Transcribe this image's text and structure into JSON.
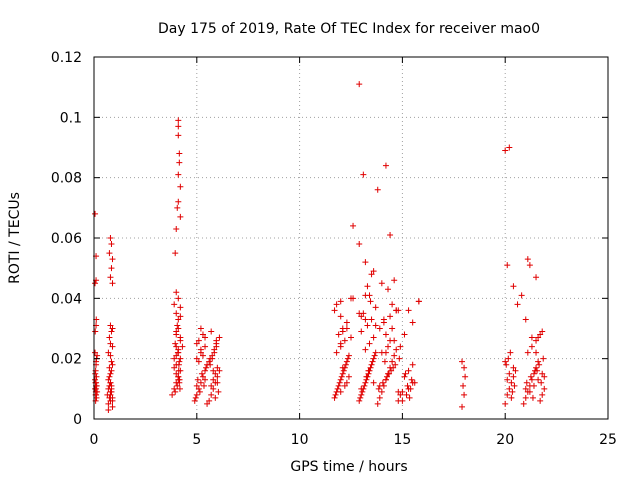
{
  "chart_data": {
    "type": "scatter",
    "title": "Day 175 of 2019, Rate Of TEC Index for receiver mao0",
    "xlabel": "GPS time / hours",
    "ylabel": "ROTI / TECUs",
    "xlim": [
      0,
      25
    ],
    "ylim": [
      0,
      0.12
    ],
    "xticks": [
      0,
      5,
      10,
      15,
      20,
      25
    ],
    "xtick_labels": [
      "0",
      "5",
      "10",
      "15",
      "20",
      "25"
    ],
    "yticks": [
      0,
      0.02,
      0.04,
      0.06,
      0.08,
      0.1,
      0.12
    ],
    "ytick_labels": [
      "0",
      "0.02",
      "0.04",
      "0.06",
      "0.08",
      "0.1",
      "0.12"
    ],
    "grid": true,
    "legend": "none",
    "marker": "+",
    "series": [
      {
        "name": "mao0",
        "color": "#e00000",
        "x": [
          0.05,
          0.08,
          0.1,
          0.12,
          0.05,
          0.15,
          0.1,
          0.08,
          0.12,
          0.06,
          0.1,
          0.15,
          0.1,
          0.05,
          0.08,
          0.12,
          0.1,
          0.06,
          0.11,
          0.09,
          0.13,
          0.07,
          0.1,
          0.1,
          0.7,
          0.75,
          0.8,
          0.85,
          0.9,
          0.65,
          0.7,
          0.8,
          0.9,
          0.75,
          0.85,
          0.7,
          0.8,
          0.9,
          0.75,
          0.85,
          0.8,
          0.7,
          0.9,
          0.8,
          0.75,
          0.85,
          0.8,
          0.9,
          0.7,
          0.8,
          0.85,
          0.75,
          0.8,
          0.9,
          0.8,
          0.85,
          3.8,
          3.9,
          4.0,
          4.1,
          4.2,
          4.0,
          3.9,
          4.1,
          4.0,
          4.2,
          3.95,
          4.05,
          4.1,
          4.0,
          3.9,
          4.15,
          4.0,
          4.1,
          3.95,
          4.2,
          4.0,
          4.05,
          4.1,
          4.0,
          4.2,
          4.1,
          3.9,
          4.0,
          4.1,
          4.0,
          4.2,
          4.15,
          4.12,
          4.18,
          4.1,
          4.13,
          4.2,
          4.08,
          4.16,
          4.3,
          4.9,
          5.0,
          5.1,
          5.2,
          5.3,
          5.4,
          5.5,
          5.0,
          5.2,
          5.4,
          4.95,
          5.15,
          5.35,
          5.05,
          5.25,
          5.45,
          5.1,
          5.3,
          5.2,
          5.0,
          5.4,
          5.5,
          5.1,
          5.3,
          5.2,
          5.0,
          5.4,
          5.6,
          5.7,
          5.8,
          5.9,
          6.0,
          6.1,
          5.65,
          5.75,
          5.85,
          5.95,
          6.05,
          5.7,
          5.8,
          5.9,
          6.0,
          5.6,
          5.75,
          5.85,
          5.95,
          6.1,
          5.7,
          5.9,
          6.0,
          5.8,
          5.65,
          5.95,
          11.7,
          11.8,
          11.9,
          12.0,
          12.1,
          12.2,
          12.3,
          12.4,
          11.75,
          11.85,
          11.95,
          12.05,
          12.15,
          12.25,
          12.35,
          11.8,
          12.0,
          12.2,
          11.9,
          12.1,
          12.3,
          12.0,
          11.7,
          11.8,
          12.4,
          12.2,
          12.0,
          12.1,
          12.3,
          12.9,
          13.0,
          13.1,
          13.2,
          13.3,
          13.4,
          13.5,
          13.6,
          13.7,
          12.95,
          13.05,
          13.15,
          13.25,
          13.35,
          13.45,
          13.55,
          13.65,
          13.2,
          13.4,
          13.6,
          13.0,
          13.3,
          13.5,
          13.1,
          13.7,
          13.45,
          13.2,
          13.6,
          13.35,
          13.0,
          13.25,
          13.8,
          13.9,
          14.0,
          14.1,
          14.2,
          14.3,
          14.4,
          14.5,
          14.6,
          14.7,
          14.8,
          14.9,
          13.85,
          14.05,
          14.25,
          14.45,
          14.65,
          14.85,
          14.0,
          14.3,
          14.6,
          14.2,
          14.5,
          14.1,
          14.4,
          14.7,
          13.9,
          14.2,
          14.8,
          14.35,
          14.55,
          14.15,
          15.0,
          15.2,
          15.4,
          15.6,
          15.1,
          15.3,
          15.5,
          15.0,
          15.25,
          15.45,
          15.35,
          15.15,
          15.5,
          15.3,
          12.0,
          12.5,
          13.3,
          13.2,
          12.6,
          12.9,
          13.5,
          14.0,
          14.5,
          14.8,
          15.1,
          15.5,
          15.8,
          12.3,
          13.4,
          13.7,
          14.2,
          14.9,
          12.1,
          13.0,
          13.9,
          14.4,
          17.9,
          18.0,
          17.95,
          18.05,
          18.0,
          17.9,
          20.0,
          20.1,
          20.2,
          20.3,
          20.4,
          20.5,
          20.05,
          20.15,
          20.25,
          20.35,
          20.45,
          20.1,
          20.3,
          20.2,
          20.4,
          20.0,
          20.9,
          21.0,
          21.1,
          21.2,
          21.3,
          21.4,
          21.5,
          21.6,
          21.7,
          21.8,
          21.9,
          21.05,
          21.25,
          21.45,
          21.65,
          21.85,
          21.1,
          21.3,
          21.5,
          21.7,
          21.2,
          21.4,
          21.6,
          21.8,
          21.35,
          21.55,
          21.75,
          21.0,
          21.9,
          21.3,
          21.5,
          0.05,
          0.1,
          0.1,
          0.05,
          0.8,
          0.85,
          0.75,
          0.9,
          0.85,
          0.8,
          0.9,
          4.1,
          4.1,
          4.1,
          4.15,
          4.15,
          4.1,
          4.2,
          4.1,
          4.05,
          4.2,
          4.0,
          3.95,
          12.0,
          12.6,
          12.5,
          12.9,
          13.1,
          12.9,
          13.2,
          13.6,
          13.8,
          14.2,
          14.4,
          14.6,
          14.3,
          14.7,
          14.1,
          15.8,
          15.3,
          20.0,
          20.1,
          20.2,
          20.4,
          20.6,
          20.8,
          21.0,
          21.1,
          21.2,
          21.5,
          21.8,
          21.6
        ],
        "y": [
          0.01,
          0.008,
          0.012,
          0.007,
          0.013,
          0.009,
          0.011,
          0.006,
          0.014,
          0.015,
          0.019,
          0.021,
          0.018,
          0.022,
          0.016,
          0.02,
          0.031,
          0.029,
          0.033,
          0.009,
          0.011,
          0.012,
          0.01,
          0.008,
          0.005,
          0.007,
          0.009,
          0.011,
          0.006,
          0.008,
          0.01,
          0.012,
          0.004,
          0.014,
          0.016,
          0.013,
          0.015,
          0.018,
          0.017,
          0.019,
          0.021,
          0.022,
          0.024,
          0.025,
          0.027,
          0.029,
          0.031,
          0.03,
          0.003,
          0.006,
          0.009,
          0.011,
          0.008,
          0.007,
          0.012,
          0.01,
          0.008,
          0.01,
          0.012,
          0.014,
          0.016,
          0.018,
          0.02,
          0.022,
          0.024,
          0.026,
          0.009,
          0.011,
          0.013,
          0.015,
          0.017,
          0.019,
          0.021,
          0.023,
          0.025,
          0.027,
          0.029,
          0.031,
          0.033,
          0.035,
          0.037,
          0.04,
          0.038,
          0.042,
          0.03,
          0.028,
          0.034,
          0.012,
          0.016,
          0.01,
          0.014,
          0.018,
          0.02,
          0.022,
          0.013,
          0.024,
          0.006,
          0.008,
          0.01,
          0.012,
          0.014,
          0.016,
          0.018,
          0.02,
          0.022,
          0.024,
          0.007,
          0.009,
          0.011,
          0.013,
          0.015,
          0.017,
          0.019,
          0.021,
          0.023,
          0.025,
          0.027,
          0.005,
          0.026,
          0.028,
          0.03,
          0.011,
          0.013,
          0.006,
          0.008,
          0.01,
          0.012,
          0.014,
          0.016,
          0.018,
          0.02,
          0.022,
          0.024,
          0.009,
          0.011,
          0.013,
          0.015,
          0.017,
          0.019,
          0.021,
          0.023,
          0.025,
          0.027,
          0.029,
          0.007,
          0.012,
          0.016,
          0.02,
          0.026,
          0.007,
          0.009,
          0.011,
          0.013,
          0.015,
          0.017,
          0.019,
          0.021,
          0.008,
          0.01,
          0.012,
          0.014,
          0.016,
          0.018,
          0.02,
          0.022,
          0.024,
          0.026,
          0.028,
          0.03,
          0.032,
          0.034,
          0.036,
          0.038,
          0.014,
          0.011,
          0.009,
          0.017,
          0.012,
          0.006,
          0.008,
          0.01,
          0.012,
          0.014,
          0.016,
          0.018,
          0.02,
          0.022,
          0.007,
          0.009,
          0.011,
          0.013,
          0.015,
          0.017,
          0.019,
          0.021,
          0.023,
          0.025,
          0.027,
          0.029,
          0.031,
          0.033,
          0.035,
          0.037,
          0.039,
          0.041,
          0.012,
          0.016,
          0.01,
          0.014,
          0.005,
          0.007,
          0.009,
          0.011,
          0.013,
          0.015,
          0.017,
          0.019,
          0.021,
          0.023,
          0.006,
          0.008,
          0.01,
          0.012,
          0.014,
          0.016,
          0.018,
          0.02,
          0.022,
          0.024,
          0.026,
          0.028,
          0.03,
          0.032,
          0.034,
          0.036,
          0.011,
          0.013,
          0.009,
          0.015,
          0.017,
          0.019,
          0.006,
          0.008,
          0.01,
          0.012,
          0.014,
          0.016,
          0.018,
          0.009,
          0.011,
          0.013,
          0.007,
          0.015,
          0.012,
          0.01,
          0.025,
          0.027,
          0.044,
          0.033,
          0.04,
          0.035,
          0.048,
          0.045,
          0.038,
          0.036,
          0.028,
          0.032,
          0.039,
          0.03,
          0.041,
          0.031,
          0.022,
          0.024,
          0.029,
          0.034,
          0.03,
          0.026,
          0.004,
          0.008,
          0.011,
          0.014,
          0.017,
          0.019,
          0.005,
          0.008,
          0.01,
          0.012,
          0.014,
          0.016,
          0.018,
          0.02,
          0.022,
          0.009,
          0.011,
          0.013,
          0.007,
          0.015,
          0.017,
          0.019,
          0.005,
          0.007,
          0.009,
          0.011,
          0.013,
          0.015,
          0.017,
          0.019,
          0.006,
          0.008,
          0.01,
          0.012,
          0.014,
          0.016,
          0.018,
          0.02,
          0.022,
          0.024,
          0.026,
          0.028,
          0.009,
          0.011,
          0.013,
          0.015,
          0.007,
          0.016,
          0.012,
          0.01,
          0.014,
          0.027,
          0.022,
          0.068,
          0.054,
          0.046,
          0.045,
          0.06,
          0.058,
          0.055,
          0.053,
          0.05,
          0.047,
          0.045,
          0.099,
          0.097,
          0.094,
          0.088,
          0.085,
          0.081,
          0.077,
          0.072,
          0.07,
          0.067,
          0.063,
          0.055,
          0.039,
          0.064,
          0.04,
          0.058,
          0.081,
          0.111,
          0.052,
          0.049,
          0.076,
          0.084,
          0.061,
          0.046,
          0.043,
          0.036,
          0.033,
          0.039,
          0.036,
          0.089,
          0.051,
          0.09,
          0.044,
          0.038,
          0.041,
          0.033,
          0.053,
          0.051,
          0.047,
          0.029,
          0.027
        ]
      }
    ]
  }
}
